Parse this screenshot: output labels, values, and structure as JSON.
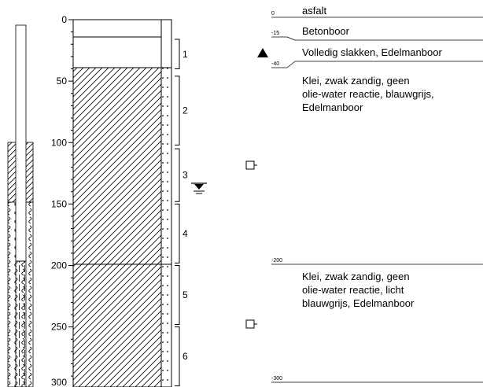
{
  "depth_axis": {
    "ticks": [
      "0",
      "50",
      "100",
      "150",
      "200",
      "250",
      "300"
    ]
  },
  "sample_numbers": [
    "1",
    "2",
    "3",
    "4",
    "5",
    "6"
  ],
  "layers": [
    {
      "top": "0",
      "description": [
        "asfalt"
      ]
    },
    {
      "top": "-15",
      "description": [
        "Betonboor"
      ]
    },
    {
      "top": "-40",
      "description": [
        "Volledig slakken, Edelmanboor"
      ]
    },
    {
      "top": "",
      "description": [
        "Klei, zwak zandig, geen",
        "olie-water reactie, blauwgrijs,",
        "Edelmanboor"
      ]
    },
    {
      "top": "-200",
      "description": [
        "Klei, zwak zandig, geen",
        "olie-water reactie, licht",
        "blauwgrijs, Edelmanboor"
      ]
    }
  ],
  "bottom_depth": "-300",
  "colors": {
    "line": "#000000",
    "background": "#ffffff"
  },
  "symbols": [
    "groundwater-level-icon",
    "sample-marker-icon",
    "slag-triangle-icon"
  ]
}
